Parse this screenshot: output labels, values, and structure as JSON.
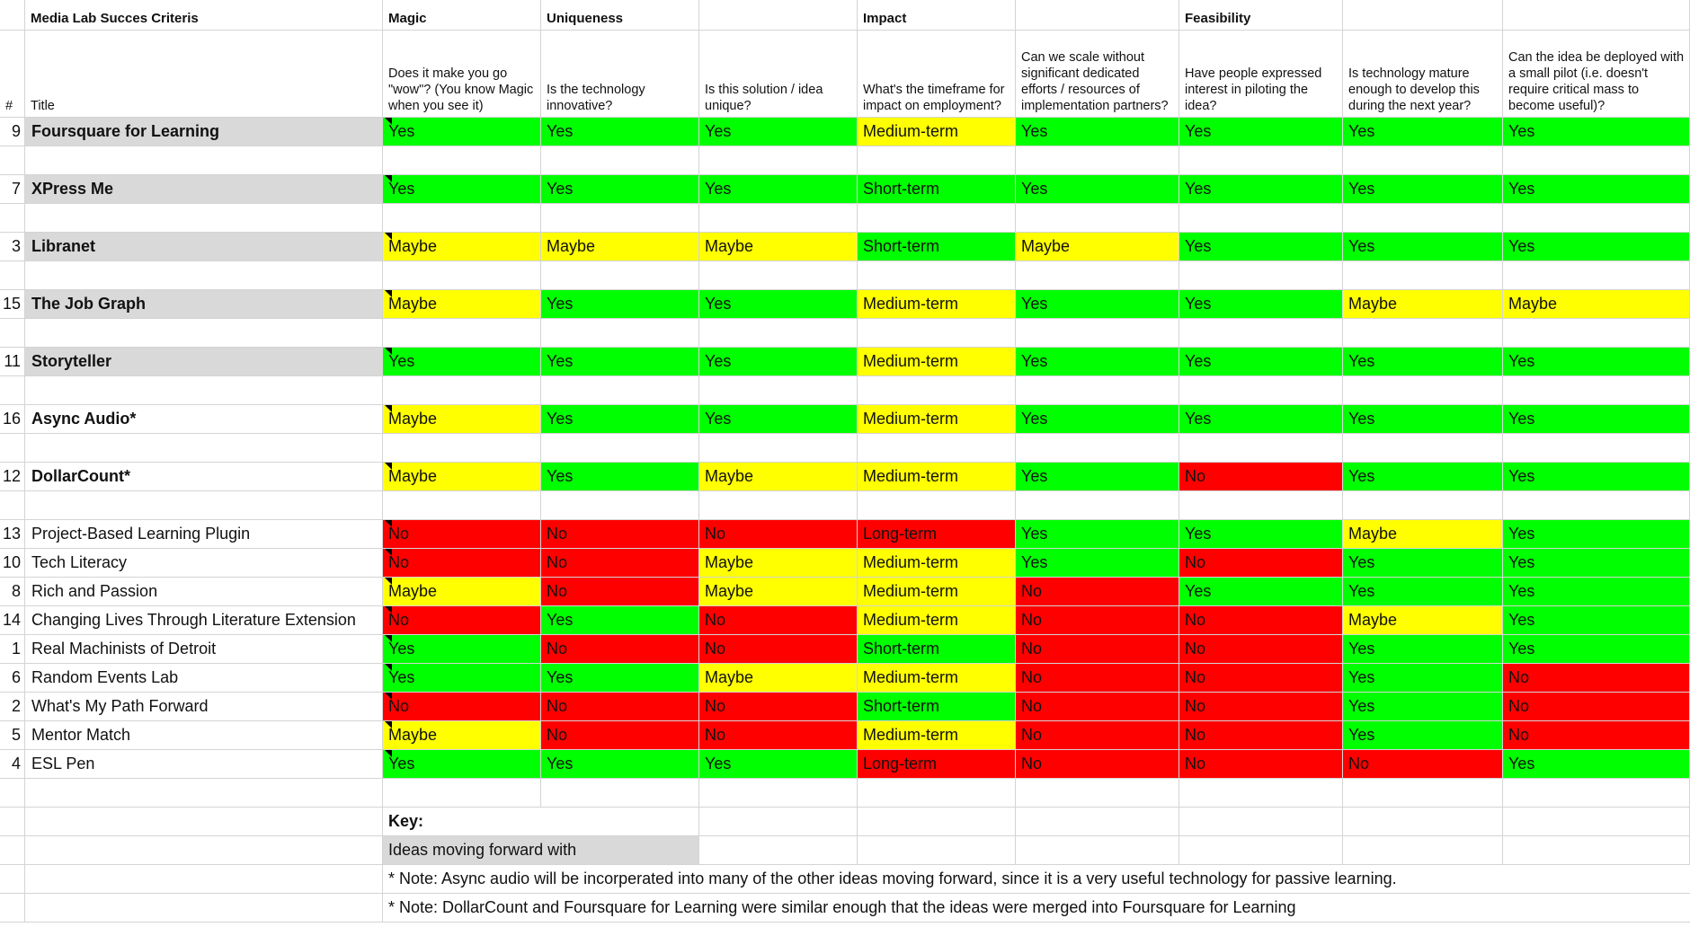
{
  "sheet": {
    "title": "Media Lab Succes Criteris",
    "categories": {
      "magic": "Magic",
      "uniqueness": "Uniqueness",
      "impact": "Impact",
      "feasibility": "Feasibility"
    },
    "col_num_header": "#",
    "col_title_header": "Title",
    "questions": [
      "Does it make you go \"wow\"? (You know Magic when you see it)",
      "Is the technology innovative?",
      "Is this solution / idea unique?",
      "What's the timeframe for impact on employment?",
      "Can we scale without significant dedicated efforts / resources of implementation partners?",
      "Have people expressed interest in piloting the idea?",
      "Is technology mature enough to develop this during the next year?",
      "Can the idea be deployed with a small pilot (i.e. doesn't require critical mass to become useful)?"
    ],
    "rows": [
      {
        "num": "9",
        "title": "Foursquare for Learning",
        "bold": true,
        "gray": true,
        "values": [
          "Yes",
          "Yes",
          "Yes",
          "Medium-term",
          "Yes",
          "Yes",
          "Yes",
          "Yes"
        ],
        "colors": [
          "green",
          "green",
          "green",
          "yellow",
          "green",
          "green",
          "green",
          "green"
        ]
      },
      {
        "num": "7",
        "title": "XPress Me",
        "bold": true,
        "gray": true,
        "values": [
          "Yes",
          "Yes",
          "Yes",
          "Short-term",
          "Yes",
          "Yes",
          "Yes",
          "Yes"
        ],
        "colors": [
          "green",
          "green",
          "green",
          "green",
          "green",
          "green",
          "green",
          "green"
        ]
      },
      {
        "num": "3",
        "title": "Libranet",
        "bold": true,
        "gray": true,
        "values": [
          "Maybe",
          "Maybe",
          "Maybe",
          "Short-term",
          "Maybe",
          "Yes",
          "Yes",
          "Yes"
        ],
        "colors": [
          "yellow",
          "yellow",
          "yellow",
          "green",
          "yellow",
          "green",
          "green",
          "green"
        ]
      },
      {
        "num": "15",
        "title": "The Job Graph",
        "bold": true,
        "gray": true,
        "values": [
          "Maybe",
          "Yes",
          "Yes",
          "Medium-term",
          "Yes",
          "Yes",
          "Maybe",
          "Maybe"
        ],
        "colors": [
          "yellow",
          "green",
          "green",
          "yellow",
          "green",
          "green",
          "yellow",
          "yellow"
        ]
      },
      {
        "num": "11",
        "title": "Storyteller",
        "bold": true,
        "gray": true,
        "values": [
          "Yes",
          "Yes",
          "Yes",
          "Medium-term",
          "Yes",
          "Yes",
          "Yes",
          "Yes"
        ],
        "colors": [
          "green",
          "green",
          "green",
          "yellow",
          "green",
          "green",
          "green",
          "green"
        ]
      },
      {
        "num": "16",
        "title": "Async Audio*",
        "bold": true,
        "gray": false,
        "values": [
          "Maybe",
          "Yes",
          "Yes",
          "Medium-term",
          "Yes",
          "Yes",
          "Yes",
          "Yes"
        ],
        "colors": [
          "yellow",
          "green",
          "green",
          "yellow",
          "green",
          "green",
          "green",
          "green"
        ]
      },
      {
        "num": "12",
        "title": "DollarCount*",
        "bold": true,
        "gray": false,
        "values": [
          "Maybe",
          "Yes",
          "Maybe",
          "Medium-term",
          "Yes",
          "No",
          "Yes",
          "Yes"
        ],
        "colors": [
          "yellow",
          "green",
          "yellow",
          "yellow",
          "green",
          "red",
          "green",
          "green"
        ]
      },
      {
        "num": "13",
        "title": "Project-Based Learning Plugin",
        "bold": false,
        "gray": false,
        "values": [
          "No",
          "No",
          "No",
          "Long-term",
          "Yes",
          "Yes",
          "Maybe",
          "Yes"
        ],
        "colors": [
          "red",
          "red",
          "red",
          "red",
          "green",
          "green",
          "yellow",
          "green"
        ]
      },
      {
        "num": "10",
        "title": "Tech Literacy",
        "bold": false,
        "gray": false,
        "values": [
          "No",
          "No",
          "Maybe",
          "Medium-term",
          "Yes",
          "No",
          "Yes",
          "Yes"
        ],
        "colors": [
          "red",
          "red",
          "yellow",
          "yellow",
          "green",
          "red",
          "green",
          "green"
        ]
      },
      {
        "num": "8",
        "title": "Rich and Passion",
        "bold": false,
        "gray": false,
        "values": [
          "Maybe",
          "No",
          "Maybe",
          "Medium-term",
          "No",
          "Yes",
          "Yes",
          "Yes"
        ],
        "colors": [
          "yellow",
          "red",
          "yellow",
          "yellow",
          "red",
          "green",
          "green",
          "green"
        ]
      },
      {
        "num": "14",
        "title": "Changing Lives Through Literature Extension",
        "bold": false,
        "gray": false,
        "values": [
          "No",
          "Yes",
          "No",
          "Medium-term",
          "No",
          "No",
          "Maybe",
          "Yes"
        ],
        "colors": [
          "red",
          "green",
          "red",
          "yellow",
          "red",
          "red",
          "yellow",
          "green"
        ]
      },
      {
        "num": "1",
        "title": "Real Machinists of Detroit",
        "bold": false,
        "gray": false,
        "values": [
          "Yes",
          "No",
          "No",
          "Short-term",
          "No",
          "No",
          "Yes",
          "Yes"
        ],
        "colors": [
          "green",
          "red",
          "red",
          "green",
          "red",
          "red",
          "green",
          "green"
        ]
      },
      {
        "num": "6",
        "title": "Random Events Lab",
        "bold": false,
        "gray": false,
        "values": [
          "Yes",
          "Yes",
          "Maybe",
          "Medium-term",
          "No",
          "No",
          "Yes",
          "No"
        ],
        "colors": [
          "green",
          "green",
          "yellow",
          "yellow",
          "red",
          "red",
          "green",
          "red"
        ]
      },
      {
        "num": "2",
        "title": "What's My Path Forward",
        "bold": false,
        "gray": false,
        "values": [
          "No",
          "No",
          "No",
          "Short-term",
          "No",
          "No",
          "Yes",
          "No"
        ],
        "colors": [
          "red",
          "red",
          "red",
          "green",
          "red",
          "red",
          "green",
          "red"
        ]
      },
      {
        "num": "5",
        "title": "Mentor Match",
        "bold": false,
        "gray": false,
        "values": [
          "Maybe",
          "No",
          "No",
          "Medium-term",
          "No",
          "No",
          "Yes",
          "No"
        ],
        "colors": [
          "yellow",
          "red",
          "red",
          "yellow",
          "red",
          "red",
          "green",
          "red"
        ]
      },
      {
        "num": "4",
        "title": "ESL Pen",
        "bold": false,
        "gray": false,
        "values": [
          "Yes",
          "Yes",
          "Yes",
          "Long-term",
          "No",
          "No",
          "No",
          "Yes"
        ],
        "colors": [
          "green",
          "green",
          "green",
          "red",
          "red",
          "red",
          "red",
          "green"
        ]
      }
    ],
    "key": {
      "label": "Key:",
      "moving_forward": "Ideas moving forward with",
      "note1": "* Note: Async audio will be incorperated into many of the other ideas moving forward, since it is a very useful technology for passive learning.",
      "note2": "* Note: DollarCount and Foursquare for Learning were similar enough that the ideas were merged into Foursquare for Learning"
    }
  }
}
